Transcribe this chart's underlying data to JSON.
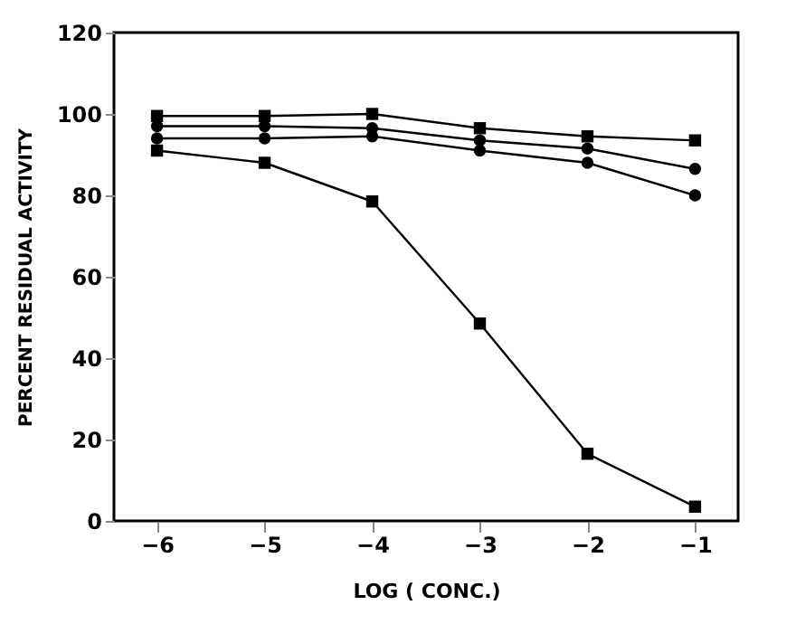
{
  "chart_data": {
    "type": "line",
    "xlabel": "LOG ( CONC.)",
    "ylabel": "PERCENT RESIDUAL ACTIVITY",
    "x": [
      -6,
      -5,
      -4,
      -3,
      -2,
      -1
    ],
    "series": [
      {
        "color": "#000000",
        "marker": "square",
        "values": [
          99.5,
          99.5,
          100,
          96.5,
          94.5,
          93.5
        ]
      },
      {
        "color": "#000000",
        "marker": "circle",
        "values": [
          97,
          97,
          96.5,
          93.5,
          91.5,
          86.5
        ]
      },
      {
        "color": "#000000",
        "marker": "circle",
        "values": [
          94,
          94,
          94.5,
          91,
          88,
          80
        ]
      },
      {
        "color": "#000000",
        "marker": "square",
        "values": [
          91,
          88,
          78.5,
          48.5,
          16.5,
          3.5
        ]
      }
    ],
    "xlim": [
      -6.4,
      -0.6
    ],
    "xticks": [
      -6,
      -5,
      -4,
      -3,
      -2,
      -1
    ],
    "ylim": [
      0,
      120
    ],
    "yticks": [
      0,
      20,
      40,
      60,
      80,
      100,
      120
    ],
    "grid": false,
    "legend": false,
    "line_style": "solid"
  }
}
